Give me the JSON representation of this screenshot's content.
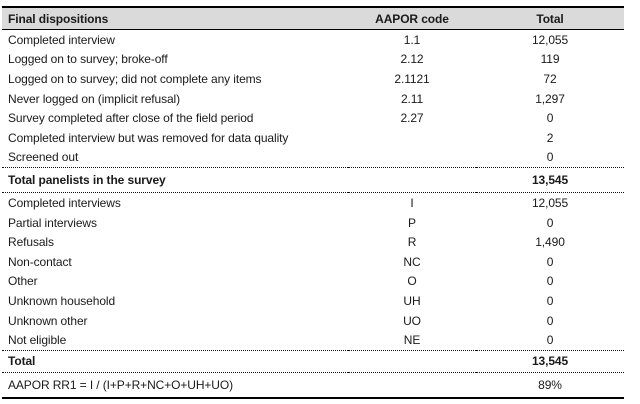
{
  "colors": {
    "header_bg": "#dadada",
    "rule": "#000000",
    "text": "#1a1a1a",
    "dotted": "#111111"
  },
  "table": {
    "columns": [
      "Final dispositions",
      "AAPOR code",
      "Total"
    ],
    "sections": [
      {
        "rows": [
          {
            "label": "Completed interview",
            "code": "1.1",
            "total": "12,055"
          },
          {
            "label": "Logged on to survey; broke-off",
            "code": "2.12",
            "total": "119"
          },
          {
            "label": "Logged on to survey; did not complete any items",
            "code": "2.1121",
            "total": "72"
          },
          {
            "label": "Never logged on (implicit refusal)",
            "code": "2.11",
            "total": "1,297"
          },
          {
            "label": "Survey completed after close of the field period",
            "code": "2.27",
            "total": "0"
          },
          {
            "label": "Completed interview but was removed for data quality",
            "code": "",
            "total": "2"
          },
          {
            "label": "Screened out",
            "code": "",
            "total": "0"
          }
        ],
        "summary": {
          "label": "Total panelists in the survey",
          "code": "",
          "total": "13,545"
        }
      },
      {
        "rows": [
          {
            "label": "Completed interviews",
            "code": "I",
            "total": "12,055"
          },
          {
            "label": "Partial interviews",
            "code": "P",
            "total": "0"
          },
          {
            "label": "Refusals",
            "code": "R",
            "total": "1,490"
          },
          {
            "label": "Non-contact",
            "code": "NC",
            "total": "0"
          },
          {
            "label": "Other",
            "code": "O",
            "total": "0"
          },
          {
            "label": "Unknown household",
            "code": "UH",
            "total": "0"
          },
          {
            "label": "Unknown other",
            "code": "UO",
            "total": "0"
          },
          {
            "label": "Not eligible",
            "code": "NE",
            "total": "0"
          }
        ],
        "summary": {
          "label": "Total",
          "code": "",
          "total": "13,545"
        }
      }
    ],
    "footer": {
      "label": "AAPOR RR1 = I / (I+P+R+NC+O+UH+UO)",
      "code": "",
      "total": "89%"
    }
  }
}
